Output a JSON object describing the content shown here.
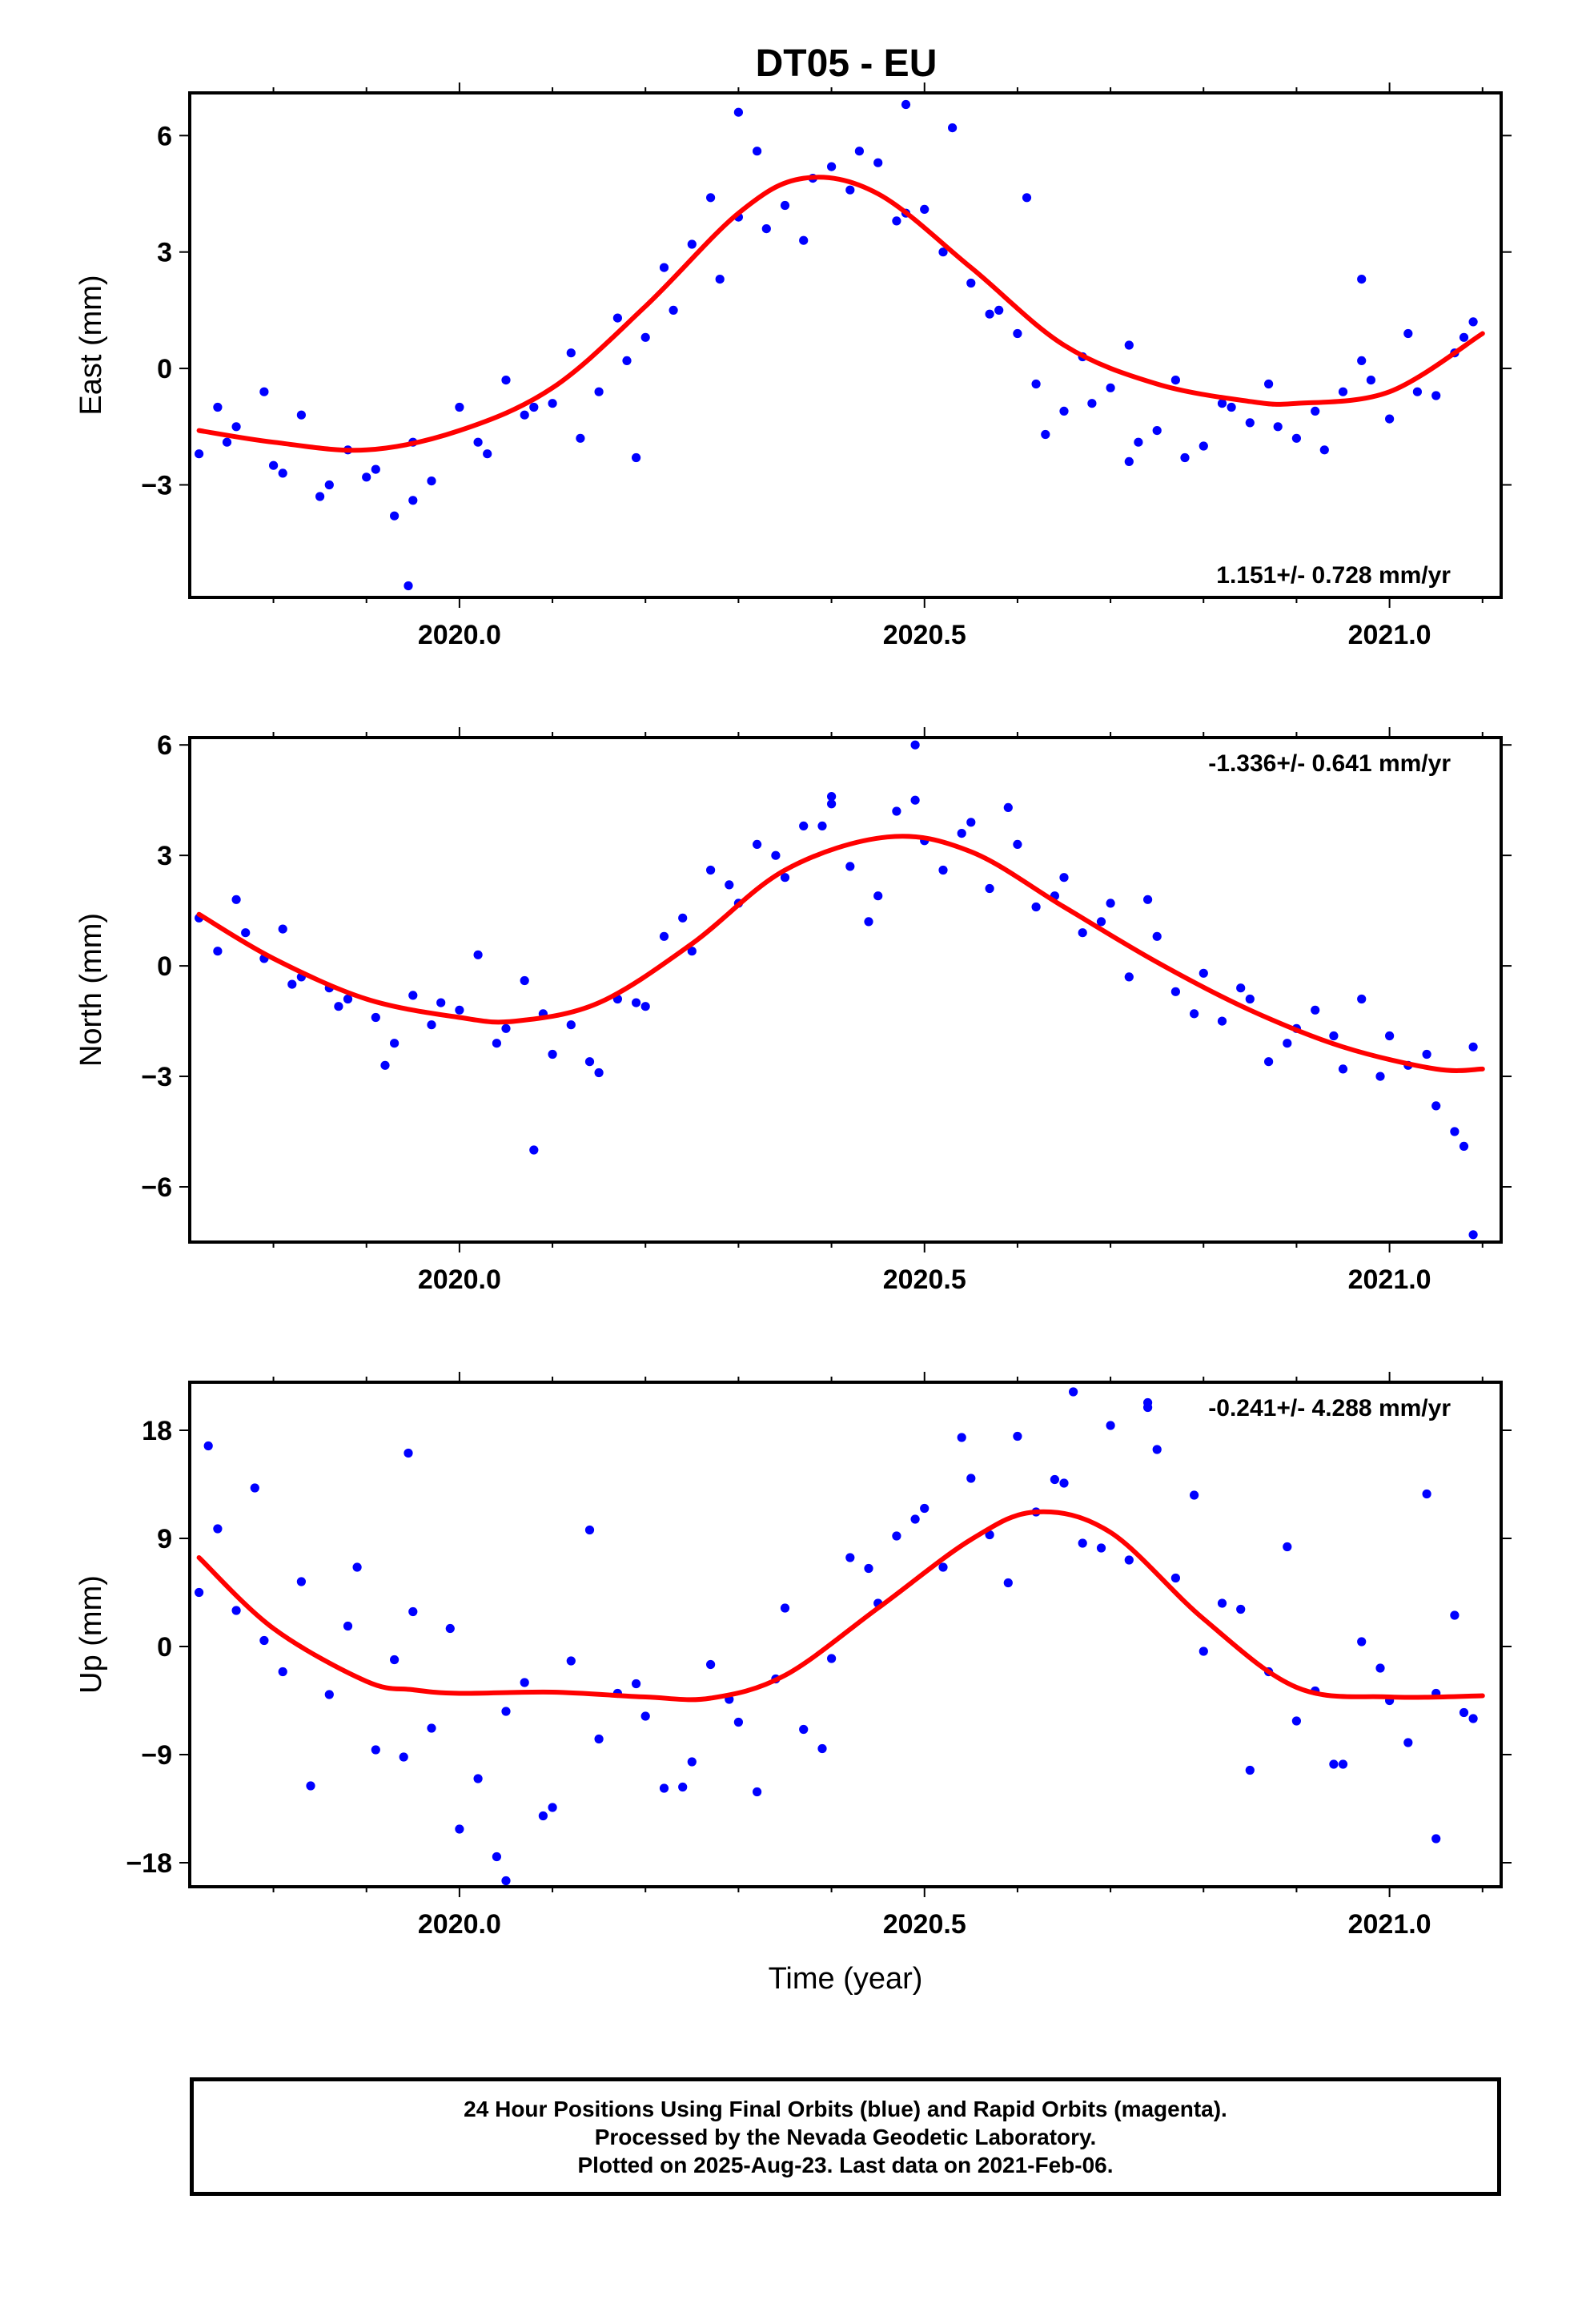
{
  "figure_title": "DT05 - EU",
  "footer": {
    "line1": "24 Hour Positions Using Final Orbits (blue) and Rapid Orbits (magenta).",
    "line2": "Processed by the Nevada Geodetic Laboratory.",
    "line3": "Plotted on 2025-Aug-23. Last data on 2021-Feb-06."
  },
  "colors": {
    "points": "#0000ff",
    "fit": "#ff0000",
    "frame": "#000000"
  },
  "chart_data": [
    {
      "type": "scatter",
      "id": "east",
      "ylabel": "East (mm)",
      "xlabel": "",
      "xlim": [
        2019.71,
        2021.12
      ],
      "ylim": [
        -5.9,
        7.1
      ],
      "x_ticks": [
        2020.0,
        2020.5,
        2021.0
      ],
      "x_tick_labels": [
        "2020.0",
        "2020.5",
        "2021.0"
      ],
      "y_ticks": [
        -3,
        0,
        3,
        6
      ],
      "y_tick_labels": [
        "−3",
        "0",
        "3",
        "6"
      ],
      "rate_label": "1.151+/- 0.728 mm/yr",
      "rate_position": "bottom-right",
      "series": [
        {
          "kind": "points",
          "x": [
            2019.72,
            2019.74,
            2019.76,
            2019.79,
            2019.81,
            2019.83,
            2019.86,
            2019.88,
            2019.91,
            2019.93,
            2019.95,
            2019.97,
            2020.0,
            2020.02,
            2020.05,
            2020.07,
            2020.1,
            2020.12,
            2020.15,
            2020.17,
            2020.2,
            2020.22,
            2020.25,
            2020.27,
            2020.3,
            2020.32,
            2020.35,
            2020.37,
            2020.4,
            2020.42,
            2020.45,
            2020.47,
            2020.5,
            2020.52,
            2020.55,
            2020.57,
            2020.6,
            2020.62,
            2020.65,
            2020.67,
            2020.7,
            2020.72,
            2020.75,
            2020.77,
            2020.8,
            2020.82,
            2020.85,
            2020.87,
            2020.9,
            2020.92,
            2020.95,
            2020.97,
            2021.0,
            2021.02,
            2021.05,
            2021.07,
            2021.09,
            2019.75,
            2019.8,
            2019.85,
            2019.9,
            2019.95,
            2020.03,
            2020.08,
            2020.13,
            2020.18,
            2020.23,
            2020.28,
            2020.33,
            2020.38,
            2020.43,
            2020.48,
            2020.53,
            2020.58,
            2020.63,
            2020.68,
            2020.73,
            2020.78,
            2020.83,
            2020.88,
            2020.93,
            2020.98,
            2021.03,
            2021.08,
            2019.945,
            2020.19,
            2020.3,
            2020.48,
            2020.61,
            2020.72,
            2020.97
          ],
          "y": [
            -2.2,
            -1.0,
            -1.5,
            -0.6,
            -2.7,
            -1.2,
            -3.0,
            -2.1,
            -2.6,
            -3.8,
            -1.9,
            -2.9,
            -1.0,
            -1.9,
            -0.3,
            -1.2,
            -0.9,
            0.4,
            -0.6,
            1.3,
            0.8,
            2.6,
            3.2,
            4.4,
            3.9,
            5.6,
            4.2,
            3.3,
            5.2,
            4.6,
            5.3,
            3.8,
            4.1,
            3.0,
            2.2,
            1.4,
            0.9,
            -0.4,
            -1.1,
            0.3,
            -0.5,
            0.6,
            -1.6,
            -0.3,
            -2.0,
            -0.9,
            -1.4,
            -0.4,
            -1.8,
            -1.1,
            -0.6,
            0.2,
            -1.3,
            0.9,
            -0.7,
            0.4,
            1.2,
            -1.9,
            -2.5,
            -3.3,
            -2.8,
            -3.4,
            -2.2,
            -1.0,
            -1.8,
            0.2,
            1.5,
            2.3,
            3.6,
            4.9,
            5.6,
            4.0,
            6.2,
            1.5,
            -1.7,
            -0.9,
            -1.9,
            -2.3,
            -1.0,
            -1.5,
            -2.1,
            -0.3,
            -0.6,
            0.8,
            -5.6,
            -2.3,
            6.6,
            6.8,
            4.4,
            -2.4,
            2.3
          ]
        },
        {
          "kind": "fit",
          "x": [
            2019.72,
            2019.8,
            2019.9,
            2020.0,
            2020.1,
            2020.2,
            2020.3,
            2020.37,
            2020.45,
            2020.55,
            2020.65,
            2020.75,
            2020.85,
            2020.9,
            2021.0,
            2021.1
          ],
          "y": [
            -1.6,
            -1.9,
            -2.1,
            -1.6,
            -0.5,
            1.6,
            4.0,
            4.9,
            4.5,
            2.6,
            0.6,
            -0.4,
            -0.85,
            -0.9,
            -0.6,
            0.9
          ]
        }
      ]
    },
    {
      "type": "scatter",
      "id": "north",
      "ylabel": "North (mm)",
      "xlabel": "",
      "xlim": [
        2019.71,
        2021.12
      ],
      "ylim": [
        -7.5,
        6.2
      ],
      "x_ticks": [
        2020.0,
        2020.5,
        2021.0
      ],
      "x_tick_labels": [
        "2020.0",
        "2020.5",
        "2021.0"
      ],
      "y_ticks": [
        -6,
        -3,
        0,
        3,
        6
      ],
      "y_tick_labels": [
        "−6",
        "−3",
        "0",
        "3",
        "6"
      ],
      "rate_label": "-1.336+/- 0.641 mm/yr",
      "rate_position": "top-right",
      "series": [
        {
          "kind": "points",
          "x": [
            2019.72,
            2019.74,
            2019.76,
            2019.79,
            2019.81,
            2019.83,
            2019.86,
            2019.88,
            2019.91,
            2019.93,
            2019.95,
            2019.97,
            2020.0,
            2020.02,
            2020.05,
            2020.07,
            2020.1,
            2020.12,
            2020.15,
            2020.17,
            2020.2,
            2020.22,
            2020.25,
            2020.27,
            2020.3,
            2020.32,
            2020.35,
            2020.37,
            2020.4,
            2020.42,
            2020.45,
            2020.47,
            2020.5,
            2020.52,
            2020.55,
            2020.57,
            2020.6,
            2020.62,
            2020.65,
            2020.67,
            2020.7,
            2020.72,
            2020.75,
            2020.77,
            2020.8,
            2020.82,
            2020.85,
            2020.87,
            2020.9,
            2020.92,
            2020.95,
            2020.97,
            2021.0,
            2021.02,
            2021.05,
            2021.07,
            2021.09,
            2019.77,
            2019.82,
            2019.87,
            2019.92,
            2019.98,
            2020.04,
            2020.09,
            2020.14,
            2020.19,
            2020.24,
            2020.29,
            2020.34,
            2020.39,
            2020.44,
            2020.49,
            2020.54,
            2020.59,
            2020.64,
            2020.69,
            2020.74,
            2020.79,
            2020.84,
            2020.89,
            2020.94,
            2020.99,
            2021.04,
            2021.08,
            2020.08,
            2020.4,
            2020.49,
            2021.09
          ],
          "y": [
            1.3,
            0.4,
            1.8,
            0.2,
            1.0,
            -0.3,
            -0.6,
            -0.9,
            -1.4,
            -2.1,
            -0.8,
            -1.6,
            -1.2,
            0.3,
            -1.7,
            -0.4,
            -2.4,
            -1.6,
            -2.9,
            -0.9,
            -1.1,
            0.8,
            0.4,
            2.6,
            1.7,
            3.3,
            2.4,
            3.8,
            4.6,
            2.7,
            1.9,
            4.2,
            3.4,
            2.6,
            3.9,
            2.1,
            3.3,
            1.6,
            2.4,
            0.9,
            1.7,
            -0.3,
            0.8,
            -0.7,
            -0.2,
            -1.5,
            -0.9,
            -2.6,
            -1.7,
            -1.2,
            -2.8,
            -0.9,
            -1.9,
            -2.7,
            -3.8,
            -4.5,
            -2.2,
            0.9,
            -0.5,
            -1.1,
            -2.7,
            -1.0,
            -2.1,
            -1.3,
            -2.6,
            -1.0,
            1.3,
            2.2,
            3.0,
            3.8,
            1.2,
            4.5,
            3.6,
            4.3,
            1.9,
            1.2,
            1.8,
            -1.3,
            -0.6,
            -2.1,
            -1.9,
            -3.0,
            -2.4,
            -4.9,
            -5.0,
            4.4,
            6.0,
            -7.3
          ]
        },
        {
          "kind": "fit",
          "x": [
            2019.72,
            2019.8,
            2019.9,
            2020.0,
            2020.06,
            2020.15,
            2020.25,
            2020.35,
            2020.46,
            2020.55,
            2020.65,
            2020.75,
            2020.85,
            2020.95,
            2021.05,
            2021.1
          ],
          "y": [
            1.4,
            0.2,
            -0.9,
            -1.4,
            -1.5,
            -1.0,
            0.6,
            2.6,
            3.5,
            3.1,
            1.6,
            0.1,
            -1.2,
            -2.2,
            -2.8,
            -2.8
          ]
        }
      ]
    },
    {
      "type": "scatter",
      "id": "up",
      "ylabel": "Up (mm)",
      "xlabel": "Time (year)",
      "xlim": [
        2019.71,
        2021.12
      ],
      "ylim": [
        -20,
        22
      ],
      "x_ticks": [
        2020.0,
        2020.5,
        2021.0
      ],
      "x_tick_labels": [
        "2020.0",
        "2020.5",
        "2021.0"
      ],
      "y_ticks": [
        -18,
        -9,
        0,
        9,
        18
      ],
      "y_tick_labels": [
        "−18",
        "−9",
        "0",
        "9",
        "18"
      ],
      "rate_label": "-0.241+/- 4.288 mm/yr",
      "rate_position": "top-right",
      "series": [
        {
          "kind": "points",
          "x": [
            2019.72,
            2019.74,
            2019.76,
            2019.79,
            2019.81,
            2019.83,
            2019.86,
            2019.88,
            2019.91,
            2019.93,
            2019.95,
            2019.97,
            2020.0,
            2020.02,
            2020.05,
            2020.07,
            2020.1,
            2020.12,
            2020.15,
            2020.17,
            2020.2,
            2020.22,
            2020.25,
            2020.27,
            2020.3,
            2020.32,
            2020.35,
            2020.37,
            2020.4,
            2020.42,
            2020.45,
            2020.47,
            2020.5,
            2020.52,
            2020.55,
            2020.57,
            2020.6,
            2020.62,
            2020.65,
            2020.67,
            2020.7,
            2020.72,
            2020.75,
            2020.77,
            2020.8,
            2020.82,
            2020.85,
            2020.87,
            2020.9,
            2020.92,
            2020.95,
            2020.97,
            2021.0,
            2021.02,
            2021.05,
            2021.07,
            2021.09,
            2019.73,
            2019.78,
            2019.84,
            2019.89,
            2019.94,
            2019.99,
            2020.04,
            2020.09,
            2020.14,
            2020.19,
            2020.24,
            2020.29,
            2020.34,
            2020.39,
            2020.44,
            2020.49,
            2020.54,
            2020.59,
            2020.64,
            2020.69,
            2020.74,
            2020.79,
            2020.84,
            2020.89,
            2020.94,
            2020.99,
            2021.04,
            2021.08,
            2019.945,
            2020.05,
            2020.66,
            2020.74,
            2021.05
          ],
          "y": [
            4.5,
            9.8,
            3.0,
            0.5,
            -2.1,
            5.4,
            -4.0,
            1.7,
            -8.6,
            -1.1,
            2.9,
            -6.8,
            -15.2,
            -11.0,
            -5.4,
            -3.0,
            -13.4,
            -1.2,
            -7.7,
            -3.9,
            -5.8,
            -11.8,
            -9.6,
            -1.5,
            -6.3,
            -12.1,
            3.2,
            -6.9,
            -1.0,
            7.4,
            3.6,
            9.2,
            11.5,
            6.6,
            14.0,
            9.3,
            17.5,
            11.2,
            13.6,
            8.6,
            18.4,
            7.2,
            16.4,
            5.7,
            -0.4,
            3.6,
            -10.3,
            -2.1,
            -6.2,
            -3.7,
            -9.8,
            0.4,
            -4.5,
            -8.0,
            -3.9,
            2.6,
            -6.0,
            16.7,
            13.2,
            -11.6,
            6.6,
            -9.2,
            1.5,
            -17.5,
            -14.1,
            9.7,
            -3.1,
            -11.7,
            -4.4,
            -2.7,
            -8.5,
            6.5,
            10.6,
            17.4,
            5.3,
            13.9,
            8.2,
            20.3,
            12.6,
            3.1,
            8.3,
            -9.8,
            -1.8,
            12.7,
            -5.5,
            16.1,
            -19.5,
            21.2,
            19.9,
            -16.0
          ]
        },
        {
          "kind": "fit",
          "x": [
            2019.72,
            2019.8,
            2019.9,
            2019.95,
            2020.0,
            2020.1,
            2020.2,
            2020.27,
            2020.35,
            2020.45,
            2020.55,
            2020.62,
            2020.7,
            2020.8,
            2020.9,
            2021.0,
            2021.1
          ],
          "y": [
            7.4,
            1.5,
            -2.9,
            -3.6,
            -3.9,
            -3.8,
            -4.2,
            -4.3,
            -2.4,
            3.2,
            8.9,
            11.2,
            9.5,
            2.3,
            -3.4,
            -4.2,
            -4.1
          ]
        }
      ]
    }
  ]
}
